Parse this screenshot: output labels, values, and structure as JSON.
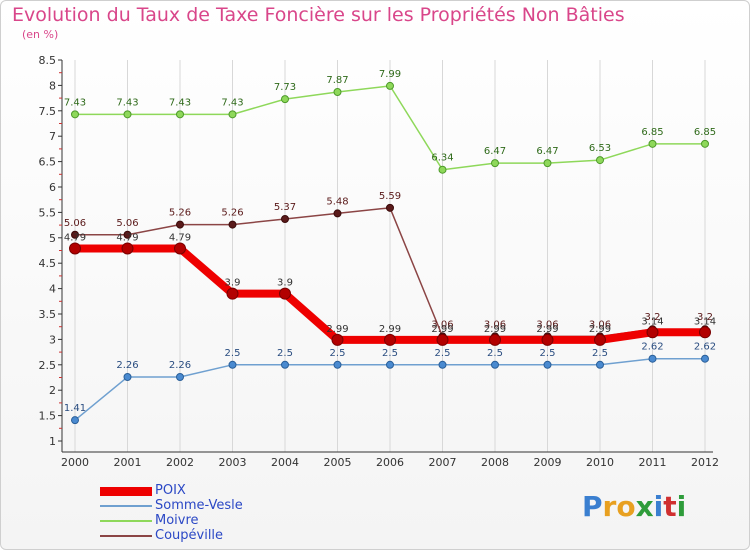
{
  "title": "Evolution du Taux de Taxe Foncière sur les Propriétés Non Bâties",
  "subtitle": "(en %)",
  "logo": {
    "text": "Proxiti",
    "letters": [
      {
        "ch": "P",
        "color": "#3a7fd0"
      },
      {
        "ch": "r",
        "color": "#e8a020"
      },
      {
        "ch": "o",
        "color": "#e8a020"
      },
      {
        "ch": "x",
        "color": "#2e9c3a"
      },
      {
        "ch": "i",
        "color": "#3a7fd0"
      },
      {
        "ch": "t",
        "color": "#d03030"
      },
      {
        "ch": "i",
        "color": "#2e9c3a"
      }
    ]
  },
  "chart_data": {
    "type": "line",
    "title": "Evolution du Taux de Taxe Foncière sur les Propriétés Non Bâties",
    "ylabel": "(en %)",
    "xlabel": "",
    "ylim": [
      0.8,
      8.5
    ],
    "yticks": [
      1,
      1.5,
      2,
      2.5,
      3,
      3.5,
      4,
      4.5,
      5,
      5.5,
      6,
      6.5,
      7,
      7.5,
      8,
      8.5
    ],
    "ytick_labels": [
      "1",
      "1.5",
      "2",
      "2.5",
      "3",
      "3.5",
      "4",
      "4.5",
      "5",
      "5.5",
      "6",
      "6.5",
      "7",
      "7.5",
      "8",
      "8.5"
    ],
    "categories": [
      "2000",
      "2001",
      "2002",
      "2003",
      "2004",
      "2005",
      "2006",
      "2007",
      "2008",
      "2009",
      "2010",
      "2011",
      "2012"
    ],
    "grid": "vertical",
    "legend_position": "bottom-left",
    "series": [
      {
        "name": "Moivre",
        "color": "#8ed85a",
        "values": [
          7.43,
          7.43,
          7.43,
          7.43,
          7.73,
          7.87,
          7.99,
          6.34,
          6.47,
          6.47,
          6.53,
          6.85,
          6.85
        ],
        "labels": [
          "7.43",
          "7.43",
          "7.43",
          "7.43",
          "7.73",
          "7.87",
          "7.99",
          "6.34",
          "6.47",
          "6.47",
          "6.53",
          "6.85",
          "6.85"
        ]
      },
      {
        "name": "Coupéville",
        "color": "#8b4545",
        "values": [
          5.06,
          5.06,
          5.26,
          5.26,
          5.37,
          5.48,
          5.59,
          3.06,
          3.06,
          3.06,
          3.06,
          3.2,
          3.2
        ],
        "labels": [
          "5.06",
          "5.06",
          "5.26",
          "5.26",
          "5.37",
          "5.48",
          "5.59",
          "3.06",
          "3.06",
          "3.06",
          "3.06",
          "3.2",
          "3.2"
        ]
      },
      {
        "name": "Somme-Vesle",
        "color": "#6fa0d0",
        "values": [
          1.41,
          2.26,
          2.26,
          2.5,
          2.5,
          2.5,
          2.5,
          2.5,
          2.5,
          2.5,
          2.5,
          2.62,
          2.62
        ],
        "labels": [
          "1.41",
          "2.26",
          "2.26",
          "2.5",
          "2.5",
          "2.5",
          "2.5",
          "2.5",
          "2.5",
          "2.5",
          "2.5",
          "2.62",
          "2.62"
        ]
      },
      {
        "name": "POIX",
        "color": "#ee0000",
        "values": [
          4.79,
          4.79,
          4.79,
          3.9,
          3.9,
          2.99,
          2.99,
          2.99,
          2.99,
          2.99,
          2.99,
          3.14,
          3.14
        ],
        "labels": [
          "4.79",
          "4.79",
          "4.79",
          "3.9",
          "3.9",
          "2.99",
          "2.99",
          "2.99",
          "2.99",
          "2.99",
          "2.99",
          "3.14",
          "3.14"
        ]
      }
    ]
  },
  "legend": [
    {
      "name": "POIX",
      "color": "#ee0000",
      "width": 8
    },
    {
      "name": "Somme-Vesle",
      "color": "#6fa0d0",
      "width": 2
    },
    {
      "name": "Moivre",
      "color": "#8ed85a",
      "width": 2
    },
    {
      "name": "Coupéville",
      "color": "#8b4545",
      "width": 2
    }
  ]
}
